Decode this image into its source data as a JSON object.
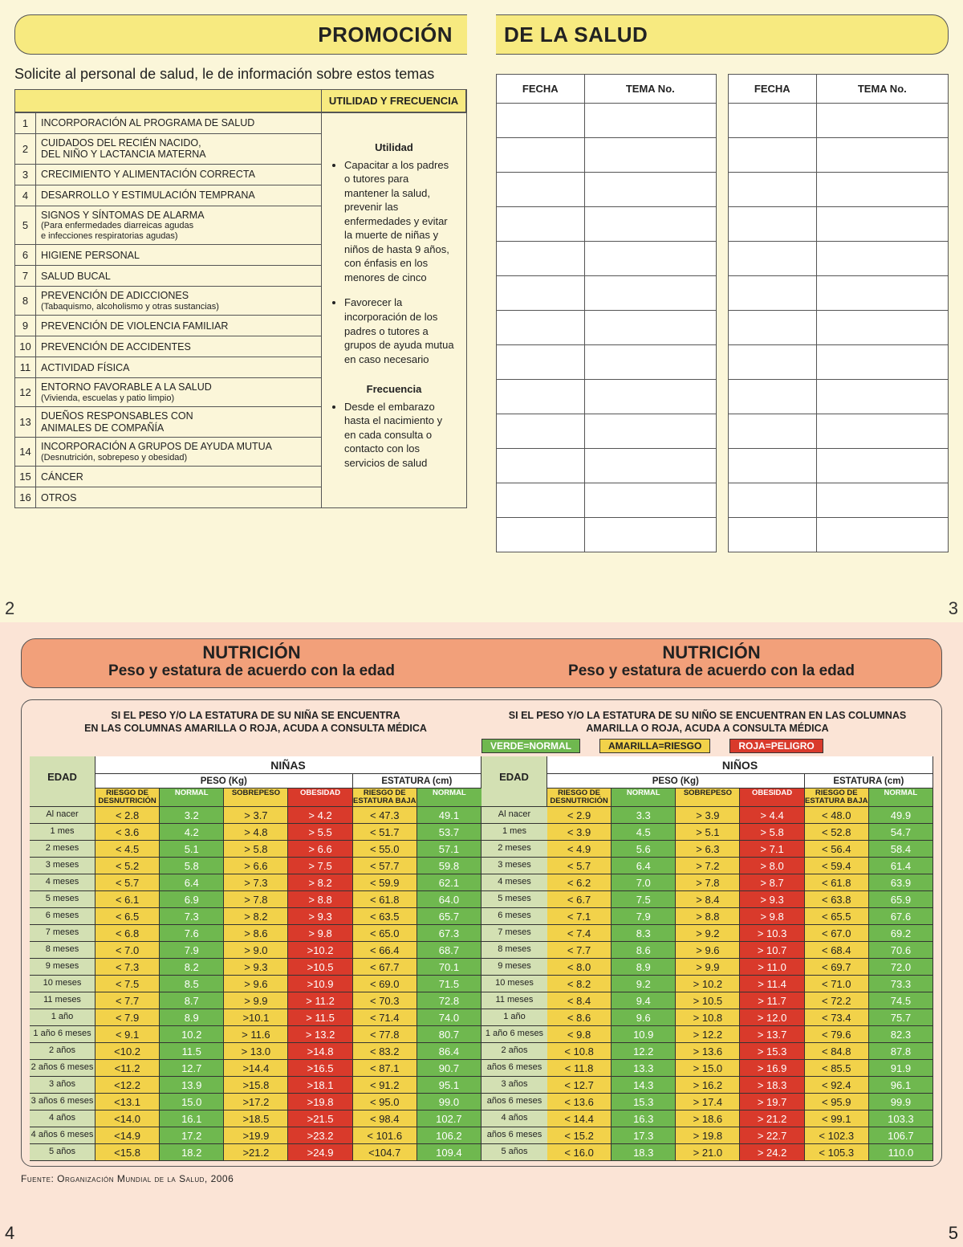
{
  "top": {
    "title_left": "PROMOCIÓN",
    "title_right": "DE LA SALUD",
    "intro": "Solicite al personal de salud, le de información sobre estos temas",
    "utility_header": "UTILIDAD Y FRECUENCIA",
    "topics": [
      {
        "n": "1",
        "t": "INCORPORACIÓN AL PROGRAMA DE SALUD"
      },
      {
        "n": "2",
        "t": "CUIDADOS DEL RECIÉN NACIDO,\nDEL NIÑO Y LACTANCIA MATERNA"
      },
      {
        "n": "3",
        "t": "CRECIMIENTO Y ALIMENTACIÓN CORRECTA"
      },
      {
        "n": "4",
        "t": "DESARROLLO Y ESTIMULACIÓN TEMPRANA"
      },
      {
        "n": "5",
        "t": "SIGNOS Y SÍNTOMAS DE ALARMA",
        "s": "(Para enfermedades diarreicas agudas\ne infecciones respiratorias agudas)"
      },
      {
        "n": "6",
        "t": "HIGIENE PERSONAL"
      },
      {
        "n": "7",
        "t": "SALUD BUCAL"
      },
      {
        "n": "8",
        "t": "PREVENCIÓN DE ADICCIONES",
        "s": "(Tabaquismo, alcoholismo y otras sustancias)"
      },
      {
        "n": "9",
        "t": "PREVENCIÓN DE VIOLENCIA FAMILIAR"
      },
      {
        "n": "10",
        "t": "PREVENCIÓN DE ACCIDENTES"
      },
      {
        "n": "11",
        "t": "ACTIVIDAD FÍSICA"
      },
      {
        "n": "12",
        "t": "ENTORNO FAVORABLE A LA SALUD",
        "s": "(Vivienda, escuelas y patio limpio)"
      },
      {
        "n": "13",
        "t": "DUEÑOS RESPONSABLES CON\nANIMALES DE COMPAÑÍA"
      },
      {
        "n": "14",
        "t": "INCORPORACIÓN A GRUPOS DE AYUDA MUTUA",
        "s": "(Desnutrición, sobrepeso y obesidad)"
      },
      {
        "n": "15",
        "t": "CÁNCER"
      },
      {
        "n": "16",
        "t": "OTROS"
      }
    ],
    "utility_block": {
      "h1": "Utilidad",
      "b1": "Capacitar a los padres o tutores para mantener la salud, prevenir las enfermedades y evitar la muerte de niñas y niños de hasta 9 años, con énfasis en los menores de cinco",
      "b2": "Favorecer la incorporación de los padres o tutores a grupos de ayuda mutua en caso necesario",
      "h2": "Frecuencia",
      "b3": "Desde el embarazo hasta el nacimiento y en cada consulta o contacto con los servicios de salud"
    },
    "log_headers": [
      "FECHA",
      "TEMA No."
    ],
    "log_rows": 13,
    "page_left": "2",
    "page_right": "3"
  },
  "bottom": {
    "title": "NUTRICIÓN",
    "subtitle": "Peso y estatura de acuerdo con la edad",
    "warn_left": "SI EL PESO Y/O LA ESTATURA DE SU NIÑA SE ENCUENTRA\nEN LAS COLUMNAS AMARILLA O ROJA, ACUDA A CONSULTA MÉDICA",
    "warn_right": "SI EL PESO Y/O LA ESTATURA DE SU NIÑO SE ENCUENTRAN EN LAS COLUMNAS\nAMARILLA O ROJA, ACUDA A CONSULTA MÉDICA",
    "legend": {
      "verde": "VERDE=NORMAL",
      "amarilla": "AMARILLA=RIESGO",
      "roja": "ROJA=PELIGRO"
    },
    "group_left": "NIÑAS",
    "group_right": "NIÑOS",
    "edad_label": "EDAD",
    "peso_label": "PESO (Kg)",
    "est_label": "ESTATURA (cm)",
    "sub_headers": [
      "RIESGO DE\nDESNUTRICIÓN",
      "NORMAL",
      "SOBREPESO",
      "OBESIDAD",
      "RIESGO DE\nESTATURA BAJA",
      "NORMAL"
    ],
    "colors": {
      "yellow": "#f2d24a",
      "green": "#6fb84f",
      "red": "#d93a2b",
      "age": "#d3e0b3",
      "bg": "#fbe4d6",
      "title_bg": "#f2a07a"
    },
    "ages": [
      "Al nacer",
      "1 mes",
      "2 meses",
      "3 meses",
      "4 meses",
      "5 meses",
      "6 meses",
      "7 meses",
      "8 meses",
      "9 meses",
      "10 meses",
      "11 meses",
      "1 año",
      "1 año 6 meses",
      "2 años",
      "2 años 6 meses",
      "3 años",
      "3 años 6 meses",
      "4 años",
      "4 años 6 meses",
      "5 años"
    ],
    "ages_r": [
      "Al nacer",
      "1 mes",
      "2 meses",
      "3 meses",
      "4 meses",
      "5 meses",
      "6 meses",
      "7 meses",
      "8 meses",
      "9 meses",
      "10 meses",
      "11 meses",
      "1 año",
      "1 año 6 meses",
      "2 años",
      "años 6 meses",
      "3 años",
      "años 6 meses",
      "4 años",
      "años 6 meses",
      "5 años"
    ],
    "girls": [
      [
        "< 2.8",
        "3.2",
        "> 3.7",
        "> 4.2",
        "< 47.3",
        "49.1"
      ],
      [
        "< 3.6",
        "4.2",
        "> 4.8",
        "> 5.5",
        "< 51.7",
        "53.7"
      ],
      [
        "< 4.5",
        "5.1",
        "> 5.8",
        "> 6.6",
        "< 55.0",
        "57.1"
      ],
      [
        "< 5.2",
        "5.8",
        "> 6.6",
        "> 7.5",
        "< 57.7",
        "59.8"
      ],
      [
        "< 5.7",
        "6.4",
        "> 7.3",
        "> 8.2",
        "< 59.9",
        "62.1"
      ],
      [
        "< 6.1",
        "6.9",
        "> 7.8",
        "> 8.8",
        "< 61.8",
        "64.0"
      ],
      [
        "< 6.5",
        "7.3",
        "> 8.2",
        "> 9.3",
        "< 63.5",
        "65.7"
      ],
      [
        "< 6.8",
        "7.6",
        "> 8.6",
        "> 9.8",
        "< 65.0",
        "67.3"
      ],
      [
        "< 7.0",
        "7.9",
        "> 9.0",
        ">10.2",
        "< 66.4",
        "68.7"
      ],
      [
        "< 7.3",
        "8.2",
        "> 9.3",
        ">10.5",
        "< 67.7",
        "70.1"
      ],
      [
        "< 7.5",
        "8.5",
        "> 9.6",
        ">10.9",
        "< 69.0",
        "71.5"
      ],
      [
        "< 7.7",
        "8.7",
        "> 9.9",
        "> 11.2",
        "< 70.3",
        "72.8"
      ],
      [
        "< 7.9",
        "8.9",
        ">10.1",
        "> 11.5",
        "< 71.4",
        "74.0"
      ],
      [
        "< 9.1",
        "10.2",
        "> 11.6",
        "> 13.2",
        "< 77.8",
        "80.7"
      ],
      [
        "<10.2",
        "11.5",
        "> 13.0",
        ">14.8",
        "< 83.2",
        "86.4"
      ],
      [
        "<11.2",
        "12.7",
        ">14.4",
        ">16.5",
        "< 87.1",
        "90.7"
      ],
      [
        "<12.2",
        "13.9",
        ">15.8",
        ">18.1",
        "< 91.2",
        "95.1"
      ],
      [
        "<13.1",
        "15.0",
        ">17.2",
        ">19.8",
        "< 95.0",
        "99.0"
      ],
      [
        "<14.0",
        "16.1",
        ">18.5",
        ">21.5",
        "< 98.4",
        "102.7"
      ],
      [
        "<14.9",
        "17.2",
        ">19.9",
        ">23.2",
        "< 101.6",
        "106.2"
      ],
      [
        "<15.8",
        "18.2",
        ">21.2",
        ">24.9",
        "<104.7",
        "109.4"
      ]
    ],
    "boys": [
      [
        "< 2.9",
        "3.3",
        "> 3.9",
        "> 4.4",
        "< 48.0",
        "49.9"
      ],
      [
        "< 3.9",
        "4.5",
        "> 5.1",
        "> 5.8",
        "< 52.8",
        "54.7"
      ],
      [
        "< 4.9",
        "5.6",
        "> 6.3",
        "> 7.1",
        "< 56.4",
        "58.4"
      ],
      [
        "< 5.7",
        "6.4",
        "> 7.2",
        "> 8.0",
        "< 59.4",
        "61.4"
      ],
      [
        "< 6.2",
        "7.0",
        "> 7.8",
        "> 8.7",
        "< 61.8",
        "63.9"
      ],
      [
        "< 6.7",
        "7.5",
        "> 8.4",
        "> 9.3",
        "< 63.8",
        "65.9"
      ],
      [
        "< 7.1",
        "7.9",
        "> 8.8",
        "> 9.8",
        "< 65.5",
        "67.6"
      ],
      [
        "< 7.4",
        "8.3",
        "> 9.2",
        "> 10.3",
        "< 67.0",
        "69.2"
      ],
      [
        "< 7.7",
        "8.6",
        "> 9.6",
        "> 10.7",
        "< 68.4",
        "70.6"
      ],
      [
        "< 8.0",
        "8.9",
        "> 9.9",
        "> 11.0",
        "< 69.7",
        "72.0"
      ],
      [
        "< 8.2",
        "9.2",
        "> 10.2",
        "> 11.4",
        "< 71.0",
        "73.3"
      ],
      [
        "< 8.4",
        "9.4",
        "> 10.5",
        "> 11.7",
        "< 72.2",
        "74.5"
      ],
      [
        "< 8.6",
        "9.6",
        "> 10.8",
        "> 12.0",
        "< 73.4",
        "75.7"
      ],
      [
        "< 9.8",
        "10.9",
        "> 12.2",
        "> 13.7",
        "< 79.6",
        "82.3"
      ],
      [
        "< 10.8",
        "12.2",
        "> 13.6",
        "> 15.3",
        "< 84.8",
        "87.8"
      ],
      [
        "< 11.8",
        "13.3",
        "> 15.0",
        "> 16.9",
        "< 85.5",
        "91.9"
      ],
      [
        "< 12.7",
        "14.3",
        "> 16.2",
        "> 18.3",
        "< 92.4",
        "96.1"
      ],
      [
        "< 13.6",
        "15.3",
        "> 17.4",
        "> 19.7",
        "< 95.9",
        "99.9"
      ],
      [
        "< 14.4",
        "16.3",
        "> 18.6",
        "> 21.2",
        "< 99.1",
        "103.3"
      ],
      [
        "< 15.2",
        "17.3",
        "> 19.8",
        "> 22.7",
        "< 102.3",
        "106.7"
      ],
      [
        "< 16.0",
        "18.3",
        "> 21.0",
        "> 24.2",
        "< 105.3",
        "110.0"
      ]
    ],
    "source": "Fuente: Organización Mundial de la Salud, 2006",
    "page_left": "4",
    "page_right": "5"
  }
}
